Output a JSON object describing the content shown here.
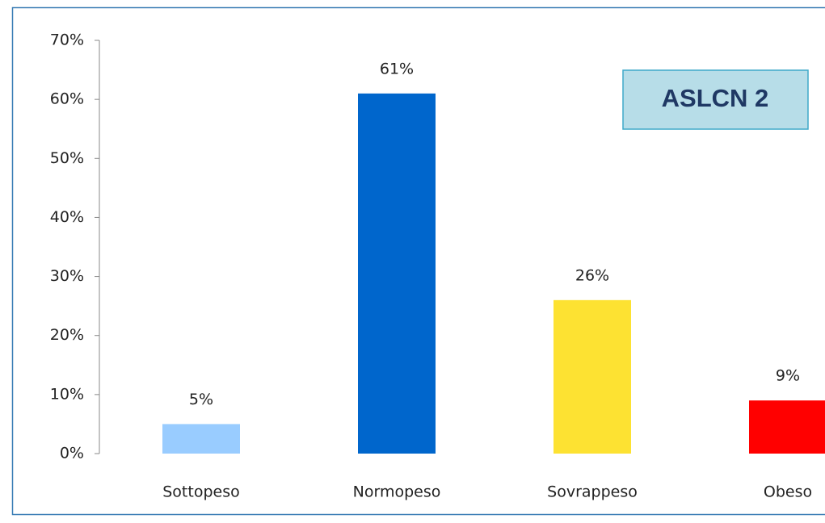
{
  "chart_data": {
    "type": "bar",
    "annotation": "ASLCN 2",
    "categories": [
      "Sottopeso",
      "Normopeso",
      "Sovrappeso",
      "Obeso"
    ],
    "values": [
      5,
      61,
      26,
      9
    ],
    "value_labels": [
      "5%",
      "61%",
      "26%",
      "9%"
    ],
    "colors": [
      "#99ccff",
      "#0066cc",
      "#fde232",
      "#ff0000"
    ],
    "ylim": [
      0,
      70
    ],
    "yticks": [
      {
        "value": 0,
        "label": "0%"
      },
      {
        "value": 10,
        "label": "10%"
      },
      {
        "value": 20,
        "label": "20%"
      },
      {
        "value": 30,
        "label": "30%"
      },
      {
        "value": 40,
        "label": "40%"
      },
      {
        "value": 50,
        "label": "50%"
      },
      {
        "value": 60,
        "label": "60%"
      },
      {
        "value": 70,
        "label": "70%"
      }
    ],
    "grid": false
  }
}
